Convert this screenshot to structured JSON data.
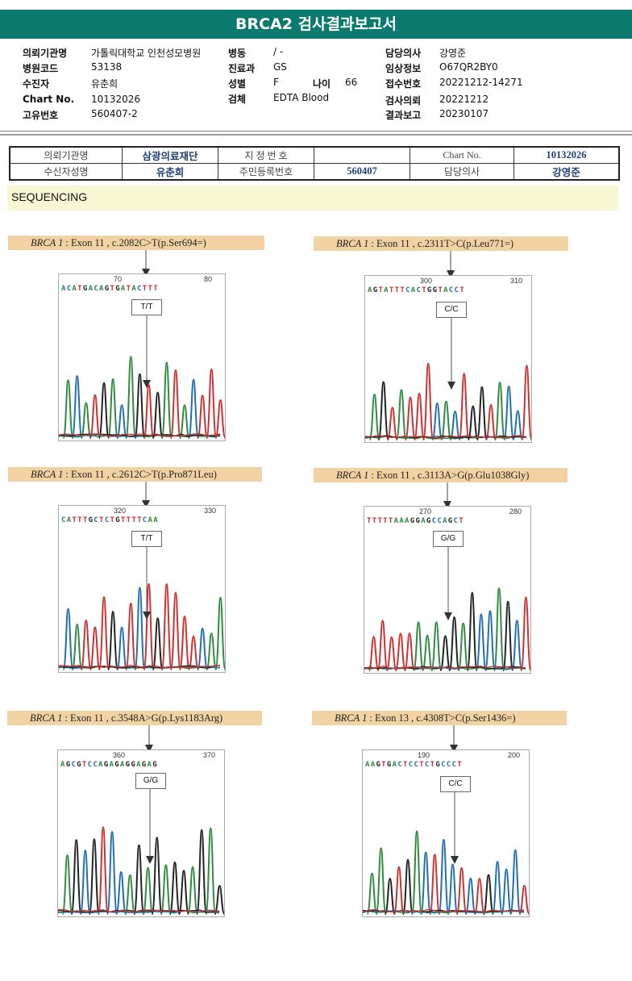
{
  "title": "BRCA2 검사결과보고서",
  "info": {
    "col1": [
      {
        "k": "의뢰기관명",
        "v": "가톨릭대학교 인천성모병원"
      },
      {
        "k": "병원코드",
        "v": "53138"
      },
      {
        "k": "수진자",
        "v": "유춘희"
      },
      {
        "k": "Chart No.",
        "v": "10132026"
      },
      {
        "k": "고유번호",
        "v": "560407-2"
      }
    ],
    "col2": [
      {
        "k": "병동",
        "v": "/ -"
      },
      {
        "k": "진료과",
        "v": "GS"
      },
      {
        "k": "성별",
        "v": "F"
      },
      {
        "k": "검체",
        "v": "EDTA Blood"
      }
    ],
    "age": {
      "k": "나이",
      "v": "66"
    },
    "col3": [
      {
        "k": "담당의사",
        "v": "강영준"
      },
      {
        "k": "임상정보",
        "v": "O67QR2BY0"
      },
      {
        "k": "접수번호",
        "v": "20221212-14271"
      },
      {
        "k": "검사의뢰",
        "v": "20221212"
      },
      {
        "k": "결과보고",
        "v": "20230107"
      }
    ]
  },
  "header_table": {
    "r1": [
      "의뢰기관명",
      "삼광의료재단",
      "지 정 번 호",
      "",
      "Chart No.",
      "10132026"
    ],
    "r2": [
      "수신자성명",
      "유춘희",
      "주민등록번호",
      "560407",
      "담당의사",
      "강영준"
    ]
  },
  "section": "SEQUENCING",
  "panels": [
    {
      "gene": "BRCA 1",
      "label": ": Exon 11 , c.2082C>T(p.Ser694=)",
      "pos1": "70",
      "pos2": "80",
      "seq": "ACATGACAGTGATACTTT",
      "genotype": "T/T"
    },
    {
      "gene": "BRCA 1",
      "label": ": Exon 11 , c.2311T>C(p.Leu771=)",
      "pos1": "300",
      "pos2": "310",
      "seq": "AGTATTTCACTGGTACCT",
      "genotype": "C/C"
    },
    {
      "gene": "BRCA 1",
      "label": ": Exon 11 , c.2612C>T(p.Pro871Leu)",
      "pos1": "320",
      "pos2": "330",
      "seq": "CATTTGCTCTGTTTTCAA",
      "genotype": "T/T"
    },
    {
      "gene": "BRCA 1",
      "label": ": Exon 11 , c.3113A>G(p.Glu1038Gly)",
      "pos1": "270",
      "pos2": "280",
      "seq": "TTTTTAAAGGAGCCAGCT",
      "genotype": "G/G"
    },
    {
      "gene": "BRCA 1",
      "label": ": Exon 11 , c.3548A>G(p.Lys1183Arg)",
      "pos1": "360",
      "pos2": "370",
      "seq": "AGCGTCCAGAGAGGAGAG",
      "genotype": "G/G"
    },
    {
      "gene": "BRCA 1",
      "label": ": Exon 13 , c.4308T>C(p.Ser1436=)",
      "pos1": "190",
      "pos2": "200",
      "seq": "AAGTGACTCCTCTGCCCT",
      "genotype": "C/C"
    }
  ],
  "colors": {
    "A": "#2e8b3f",
    "C": "#1f6fb2",
    "G": "#222222",
    "T": "#d13030",
    "title_bg": "#0a7a6e",
    "label_bg": "#f2d2a3"
  }
}
